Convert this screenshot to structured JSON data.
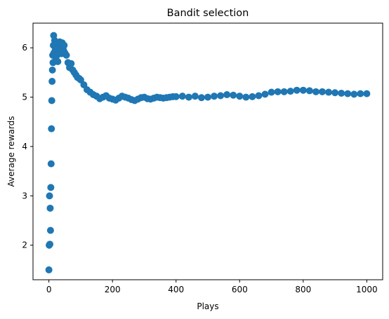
{
  "chart_data": {
    "type": "scatter",
    "title": "Bandit selection",
    "xlabel": "Plays",
    "ylabel": "Average rewards",
    "xlim": [
      -50,
      1050
    ],
    "ylim": [
      1.3,
      6.5
    ],
    "xticks": [
      0,
      200,
      400,
      600,
      800,
      1000
    ],
    "yticks": [
      2,
      3,
      4,
      5,
      6
    ],
    "xtick_labels": [
      "0",
      "200",
      "400",
      "600",
      "800",
      "1000"
    ],
    "ytick_labels": [
      "2",
      "3",
      "4",
      "5",
      "6"
    ],
    "grid": false,
    "marker_color": "#1f77b4",
    "series": [
      {
        "x": [
          0,
          1,
          2,
          3,
          4,
          5,
          6,
          7,
          8,
          9,
          10,
          11,
          12,
          13,
          14,
          15,
          16,
          18,
          20,
          22,
          24,
          26,
          28,
          30,
          32,
          34,
          36,
          38,
          40,
          42,
          44,
          46,
          48,
          50,
          55,
          60,
          65,
          70,
          75,
          80,
          85,
          90,
          95,
          100,
          110,
          120,
          130,
          140,
          150,
          160,
          170,
          180,
          190,
          200,
          210,
          220,
          230,
          240,
          250,
          260,
          270,
          280,
          290,
          300,
          310,
          320,
          330,
          340,
          350,
          360,
          370,
          380,
          390,
          400,
          420,
          440,
          460,
          480,
          500,
          520,
          540,
          560,
          580,
          600,
          620,
          640,
          660,
          680,
          700,
          720,
          740,
          760,
          780,
          800,
          820,
          840,
          860,
          880,
          900,
          920,
          940,
          960,
          980,
          1000
        ],
        "y": [
          1.5,
          2.0,
          3.0,
          2.02,
          2.75,
          2.3,
          3.17,
          3.65,
          4.36,
          4.93,
          5.32,
          5.55,
          5.85,
          5.7,
          6.05,
          6.25,
          5.9,
          6.15,
          5.95,
          5.75,
          6.1,
          5.85,
          5.72,
          6.0,
          5.9,
          6.12,
          5.95,
          6.05,
          5.88,
          6.1,
          6.0,
          5.95,
          6.05,
          5.9,
          5.85,
          5.7,
          5.6,
          5.68,
          5.55,
          5.5,
          5.45,
          5.4,
          5.38,
          5.35,
          5.25,
          5.15,
          5.1,
          5.05,
          5.02,
          4.97,
          5.0,
          5.03,
          4.98,
          4.96,
          4.94,
          4.98,
          5.02,
          5.0,
          4.98,
          4.95,
          4.93,
          4.96,
          4.99,
          5.0,
          4.97,
          4.96,
          4.98,
          5.0,
          4.99,
          4.98,
          4.99,
          5.0,
          5.01,
          5.01,
          5.02,
          5.0,
          5.02,
          4.99,
          5.0,
          5.02,
          5.03,
          5.05,
          5.04,
          5.02,
          5.0,
          5.01,
          5.03,
          5.06,
          5.1,
          5.11,
          5.11,
          5.12,
          5.14,
          5.14,
          5.13,
          5.11,
          5.11,
          5.1,
          5.09,
          5.08,
          5.07,
          5.06,
          5.07,
          5.07
        ]
      }
    ]
  }
}
